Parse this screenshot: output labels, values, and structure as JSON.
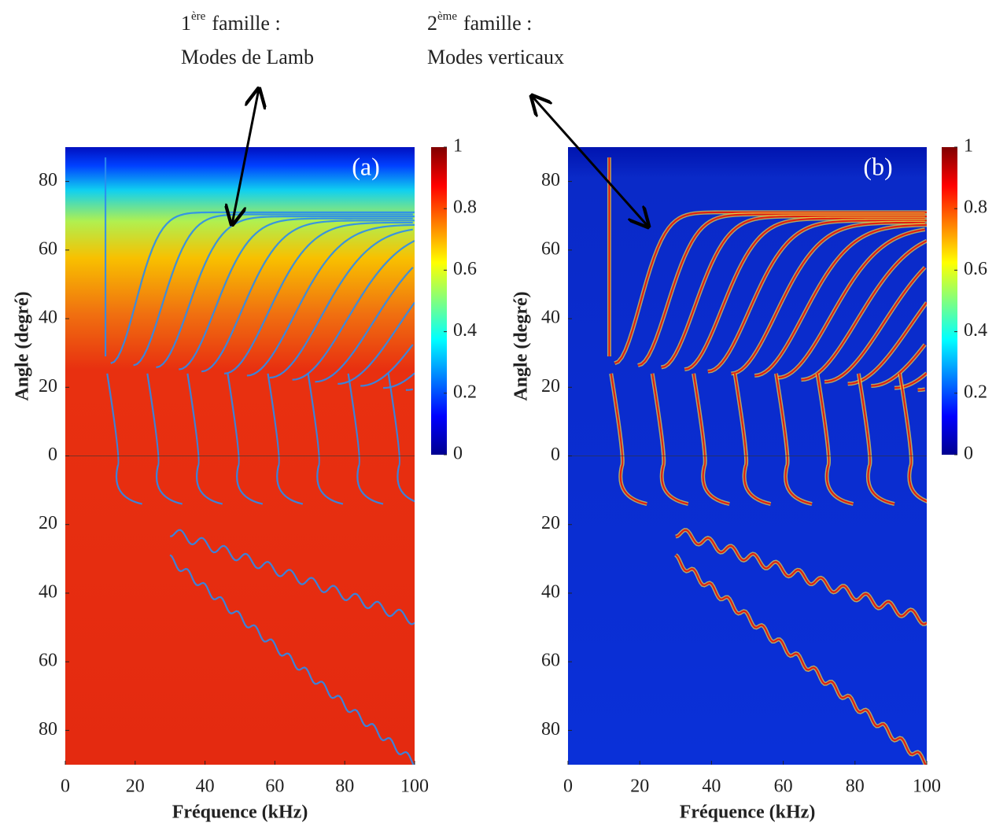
{
  "annotations": [
    {
      "number": "1",
      "superscript": "ère",
      "text": "famille :",
      "line2": "Modes de Lamb"
    },
    {
      "number": "2",
      "superscript": "ème",
      "text": "famille :",
      "line2": "Modes verticaux"
    }
  ],
  "chart_data": [
    {
      "type": "heatmap",
      "panel_label": "(a)",
      "xlabel": "Fréquence (kHz)",
      "ylabel": "Angle (degré)",
      "xlim": [
        0,
        100
      ],
      "xticks": [
        0,
        20,
        40,
        60,
        80,
        100
      ],
      "ylim": [
        -90,
        90
      ],
      "yticks": [
        80,
        60,
        40,
        20,
        0,
        {
          "value": -20,
          "label": "20"
        },
        {
          "value": -40,
          "label": "40"
        },
        {
          "value": -60,
          "label": "60"
        },
        {
          "value": -80,
          "label": "80"
        }
      ],
      "colormap": "jet",
      "clim": [
        0,
        1
      ],
      "cticks": [
        0,
        0.2,
        0.4,
        0.6,
        0.8,
        1
      ]
    },
    {
      "type": "heatmap",
      "panel_label": "(b)",
      "xlabel": "Fréquence (kHz)",
      "ylabel": "Angle (degré)",
      "xlim": [
        0,
        100
      ],
      "xticks": [
        0,
        20,
        40,
        60,
        80,
        100
      ],
      "ylim": [
        -90,
        90
      ],
      "yticks": [
        80,
        60,
        40,
        20,
        0,
        {
          "value": -20,
          "label": "20"
        },
        {
          "value": -40,
          "label": "40"
        },
        {
          "value": -60,
          "label": "60"
        },
        {
          "value": -80,
          "label": "80"
        }
      ],
      "colormap": "jet",
      "clim": [
        0,
        1
      ],
      "cticks": [
        0,
        0.2,
        0.4,
        0.6,
        0.8,
        1
      ]
    }
  ]
}
